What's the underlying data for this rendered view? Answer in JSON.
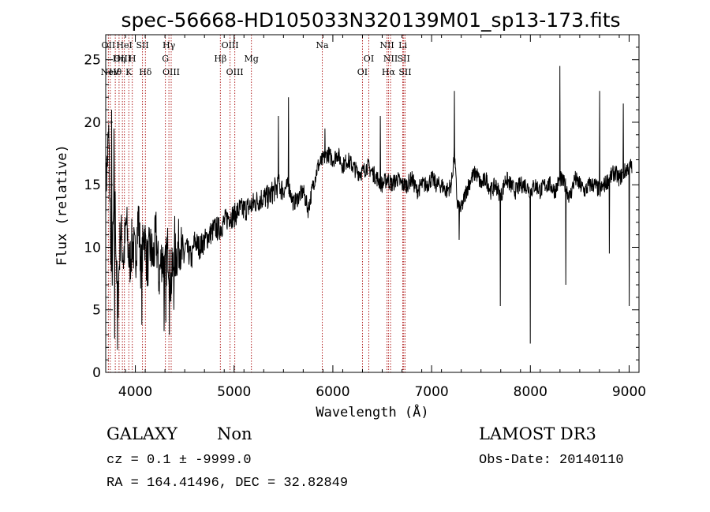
{
  "chart_data": {
    "type": "line",
    "title": "spec-56668-HD105033N320139M01_sp13-173.fits",
    "xlabel": "Wavelength (Å)",
    "ylabel": "Flux (relative)",
    "xlim": [
      3700,
      9100
    ],
    "ylim": [
      0,
      27
    ],
    "xticks": [
      4000,
      5000,
      6000,
      7000,
      8000,
      9000
    ],
    "yticks": [
      0,
      5,
      10,
      15,
      20,
      25
    ],
    "grid": false,
    "series": [
      {
        "name": "spectrum",
        "x": [
          3700,
          3730,
          3760,
          3790,
          3820,
          3850,
          3880,
          3910,
          3940,
          3970,
          4000,
          4030,
          4060,
          4090,
          4120,
          4150,
          4180,
          4210,
          4240,
          4270,
          4300,
          4330,
          4360,
          4390,
          4420,
          4450,
          4480,
          4510,
          4540,
          4570,
          4600,
          4650,
          4700,
          4750,
          4800,
          4850,
          4900,
          4950,
          5000,
          5050,
          5100,
          5150,
          5200,
          5250,
          5300,
          5350,
          5400,
          5450,
          5500,
          5550,
          5600,
          5650,
          5700,
          5750,
          5800,
          5850,
          5900,
          5950,
          6000,
          6050,
          6100,
          6150,
          6200,
          6250,
          6300,
          6350,
          6400,
          6450,
          6500,
          6550,
          6600,
          6650,
          6700,
          6750,
          6800,
          6850,
          6900,
          6950,
          7000,
          7050,
          7100,
          7150,
          7200,
          7230,
          7260,
          7300,
          7350,
          7400,
          7450,
          7500,
          7550,
          7600,
          7650,
          7700,
          7750,
          7800,
          7850,
          7900,
          7950,
          8000,
          8050,
          8100,
          8150,
          8200,
          8250,
          8300,
          8350,
          8400,
          8450,
          8500,
          8550,
          8600,
          8650,
          8700,
          8750,
          8800,
          8850,
          8900,
          8950,
          9000
        ],
        "values": [
          14.5,
          19.0,
          7.0,
          15.0,
          5.0,
          11.5,
          9.0,
          12.0,
          8.5,
          10.5,
          9.0,
          12.5,
          8.0,
          11.5,
          8.5,
          10.0,
          9.0,
          11.0,
          7.5,
          9.5,
          8.0,
          10.0,
          7.0,
          9.0,
          9.5,
          10.5,
          9.0,
          10.0,
          9.5,
          9.0,
          10.5,
          10.0,
          10.5,
          11.0,
          11.5,
          11.5,
          12.0,
          12.5,
          12.5,
          13.0,
          13.0,
          13.2,
          13.5,
          13.8,
          14.0,
          14.0,
          14.5,
          15.0,
          14.5,
          15.0,
          13.5,
          14.0,
          14.5,
          13.0,
          15.0,
          16.5,
          17.0,
          17.5,
          17.0,
          17.5,
          16.5,
          17.0,
          16.5,
          16.0,
          16.0,
          16.5,
          16.0,
          15.5,
          15.0,
          15.5,
          15.0,
          15.5,
          15.0,
          15.0,
          15.5,
          14.5,
          15.0,
          15.0,
          15.5,
          15.0,
          15.0,
          14.5,
          15.0,
          17.5,
          13.5,
          13.0,
          14.5,
          15.5,
          16.0,
          15.0,
          15.5,
          14.5,
          15.0,
          14.0,
          15.5,
          15.0,
          14.5,
          15.0,
          15.0,
          14.5,
          15.0,
          14.5,
          15.0,
          15.0,
          14.5,
          15.5,
          15.0,
          14.0,
          15.5,
          15.0,
          14.5,
          15.0,
          15.0,
          14.5,
          15.0,
          15.5,
          16.0,
          15.5,
          16.0,
          16.5
        ],
        "dips": [
          {
            "x": 3760,
            "y": 2.0
          },
          {
            "x": 3790,
            "y": 2.7
          },
          {
            "x": 3820,
            "y": 1.8
          },
          {
            "x": 4065,
            "y": 3.8
          },
          {
            "x": 4290,
            "y": 3.3
          },
          {
            "x": 4310,
            "y": 4.0
          },
          {
            "x": 4345,
            "y": 3.0
          },
          {
            "x": 4390,
            "y": 5.0
          },
          {
            "x": 7280,
            "y": 10.6
          },
          {
            "x": 7695,
            "y": 5.3
          },
          {
            "x": 8000,
            "y": 2.3
          },
          {
            "x": 8360,
            "y": 7.0
          },
          {
            "x": 8800,
            "y": 9.5
          },
          {
            "x": 9000,
            "y": 5.3
          }
        ],
        "peaks": [
          {
            "x": 3760,
            "y": 21.0
          },
          {
            "x": 3785,
            "y": 19.5
          },
          {
            "x": 4400,
            "y": 12.5
          },
          {
            "x": 5450,
            "y": 20.5
          },
          {
            "x": 5550,
            "y": 22.0
          },
          {
            "x": 5920,
            "y": 19.5
          },
          {
            "x": 6480,
            "y": 20.5
          },
          {
            "x": 7230,
            "y": 22.5
          },
          {
            "x": 8300,
            "y": 24.5
          },
          {
            "x": 8700,
            "y": 22.5
          },
          {
            "x": 8940,
            "y": 21.5
          }
        ]
      }
    ],
    "lines": [
      {
        "x": 3727,
        "row": 1,
        "label": "OII"
      },
      {
        "x": 3746,
        "row": 3,
        "label": "NeV"
      },
      {
        "x": 3869,
        "row": 2,
        "label": "OIII"
      },
      {
        "x": 3889,
        "row": 1,
        "label": "HeI"
      },
      {
        "x": 3934,
        "row": 3,
        "label": "K"
      },
      {
        "x": 3969,
        "row": 2,
        "label": "H"
      },
      {
        "x": 4072,
        "row": 1,
        "label": "SII"
      },
      {
        "x": 4102,
        "row": 3,
        "label": "Hδ"
      },
      {
        "x": 3835,
        "row": 2,
        "label": "Hη"
      },
      {
        "x": 3797,
        "row": 3,
        "label": "Hθ"
      },
      {
        "x": 4304,
        "row": 2,
        "label": "G"
      },
      {
        "x": 4340,
        "row": 1,
        "label": "Hγ"
      },
      {
        "x": 4363,
        "row": 3,
        "label": "OIII"
      },
      {
        "x": 4861,
        "row": 2,
        "label": "Hβ"
      },
      {
        "x": 4959,
        "row": 1,
        "label": "OIII"
      },
      {
        "x": 5007,
        "row": 3,
        "label": "OIII"
      },
      {
        "x": 5175,
        "row": 2,
        "label": "Mg"
      },
      {
        "x": 5893,
        "row": 1,
        "label": "Na"
      },
      {
        "x": 6300,
        "row": 3,
        "label": "OI"
      },
      {
        "x": 6364,
        "row": 2,
        "label": "OI"
      },
      {
        "x": 6548,
        "row": 1,
        "label": "NII"
      },
      {
        "x": 6563,
        "row": 3,
        "label": "Hα"
      },
      {
        "x": 6584,
        "row": 2,
        "label": "NII"
      },
      {
        "x": 6708,
        "row": 1,
        "label": "Li"
      },
      {
        "x": 6717,
        "row": 2,
        "label": "SII"
      },
      {
        "x": 6731,
        "row": 3,
        "label": "SII"
      }
    ]
  },
  "footer": {
    "class_label": "GALAXY",
    "subclass_label": "Non",
    "cz_text": "cz = 0.1 ± -9999.0",
    "coords_text": "RA = 164.41496, DEC =  32.82849",
    "survey_label": "LAMOST DR3",
    "obs_date_text": "Obs-Date: 20140110"
  }
}
